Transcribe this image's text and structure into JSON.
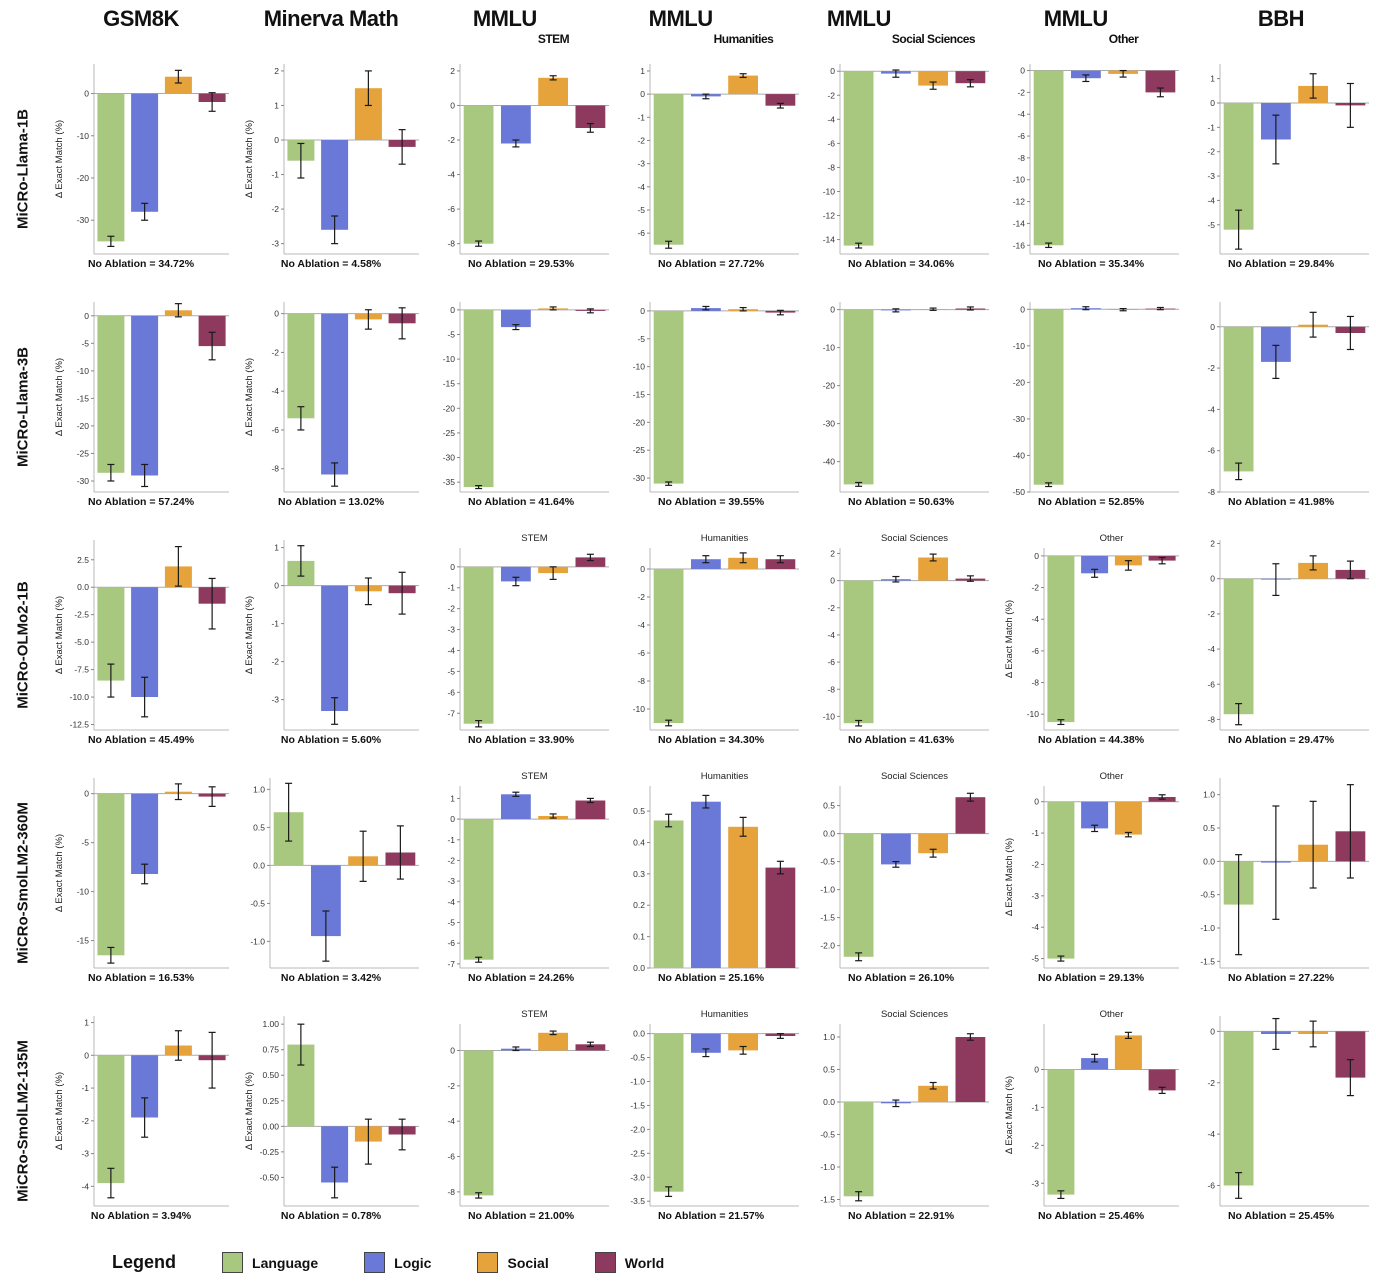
{
  "legend": {
    "title": "Legend",
    "items": [
      "Language",
      "Logic",
      "Social",
      "World"
    ]
  },
  "colors": {
    "Language": "#a9c87f",
    "Logic": "#6a79d7",
    "Social": "#e6a33c",
    "World": "#8e3a5f"
  },
  "categories": [
    "Language",
    "Logic",
    "Social",
    "World"
  ],
  "ylabel_text": "Δ Exact Match (%)",
  "columns": [
    {
      "title": "GSM8K",
      "subscript": ""
    },
    {
      "title": "Minerva Math",
      "subscript": ""
    },
    {
      "title": "MMLU",
      "subscript": "STEM"
    },
    {
      "title": "MMLU",
      "subscript": "Humanities"
    },
    {
      "title": "MMLU",
      "subscript": "Social Sciences"
    },
    {
      "title": "MMLU",
      "subscript": "Other"
    },
    {
      "title": "BBH",
      "subscript": ""
    }
  ],
  "rows": [
    "MiCRo-Llama-1B",
    "MiCRo-Llama-3B",
    "MiCRo-OLMo2-1B",
    "MiCRo-SmolLM2-360M",
    "MiCRo-SmolLM2-135M"
  ],
  "chart_data": [
    {
      "type": "bar",
      "row": "MiCRo-Llama-1B",
      "col": "GSM8K",
      "title": "",
      "values": [
        -35,
        -28,
        4,
        -2
      ],
      "errors": [
        1.2,
        2.0,
        1.5,
        2.2
      ],
      "ylim": [
        -38,
        7
      ],
      "yticks": [
        0,
        -10,
        -20,
        -30
      ],
      "dec": 0,
      "ylabel": true,
      "caption": "No Ablation = 34.72%"
    },
    {
      "type": "bar",
      "row": "MiCRo-Llama-1B",
      "col": "Minerva Math",
      "title": "",
      "values": [
        -0.6,
        -2.6,
        1.5,
        -0.2
      ],
      "errors": [
        0.5,
        0.4,
        0.5,
        0.5
      ],
      "ylim": [
        -3.3,
        2.2
      ],
      "yticks": [
        2,
        1,
        0,
        -1,
        -2,
        -3
      ],
      "dec": 0,
      "ylabel": true,
      "caption": "No Ablation = 4.58%"
    },
    {
      "type": "bar",
      "row": "MiCRo-Llama-1B",
      "col": "MMLU STEM",
      "title": "",
      "values": [
        -8,
        -2.2,
        1.6,
        -1.3
      ],
      "errors": [
        0.15,
        0.2,
        0.12,
        0.25
      ],
      "ylim": [
        -8.6,
        2.4
      ],
      "yticks": [
        2,
        0,
        -2,
        -4,
        -6,
        -8
      ],
      "dec": 0,
      "ylabel": false,
      "caption": "No Ablation = 29.53%"
    },
    {
      "type": "bar",
      "row": "MiCRo-Llama-1B",
      "col": "MMLU Humanities",
      "title": "",
      "values": [
        -6.5,
        -0.1,
        0.8,
        -0.5
      ],
      "errors": [
        0.15,
        0.1,
        0.08,
        0.1
      ],
      "ylim": [
        -6.9,
        1.3
      ],
      "yticks": [
        1,
        0,
        -1,
        -2,
        -3,
        -4,
        -5,
        -6
      ],
      "dec": 0,
      "ylabel": false,
      "caption": "No Ablation = 27.72%"
    },
    {
      "type": "bar",
      "row": "MiCRo-Llama-1B",
      "col": "MMLU Social Sciences",
      "title": "",
      "values": [
        -14.5,
        -0.2,
        -1.2,
        -1.0
      ],
      "errors": [
        0.2,
        0.3,
        0.3,
        0.3
      ],
      "ylim": [
        -15.2,
        0.6
      ],
      "yticks": [
        0,
        -2,
        -4,
        -6,
        -8,
        -10,
        -12,
        -14
      ],
      "dec": 0,
      "ylabel": false,
      "caption": "No Ablation = 34.06%"
    },
    {
      "type": "bar",
      "row": "MiCRo-Llama-1B",
      "col": "MMLU Other",
      "title": "",
      "values": [
        -16,
        -0.7,
        -0.3,
        -2.0
      ],
      "errors": [
        0.2,
        0.3,
        0.3,
        0.4
      ],
      "ylim": [
        -16.8,
        0.6
      ],
      "yticks": [
        0,
        -2,
        -4,
        -6,
        -8,
        -10,
        -12,
        -14,
        -16
      ],
      "dec": 0,
      "ylabel": false,
      "caption": "No Ablation = 35.34%"
    },
    {
      "type": "bar",
      "row": "MiCRo-Llama-1B",
      "col": "BBH",
      "title": "",
      "values": [
        -5.2,
        -1.5,
        0.7,
        -0.1
      ],
      "errors": [
        0.8,
        1.0,
        0.5,
        0.9
      ],
      "ylim": [
        -6.2,
        1.6
      ],
      "yticks": [
        1,
        0,
        -1,
        -2,
        -3,
        -4,
        -5
      ],
      "dec": 0,
      "ylabel": false,
      "caption": "No Ablation = 29.84%"
    },
    {
      "type": "bar",
      "row": "MiCRo-Llama-3B",
      "col": "GSM8K",
      "title": "",
      "values": [
        -28.5,
        -29,
        1,
        -5.5
      ],
      "errors": [
        1.5,
        2.0,
        1.2,
        2.5
      ],
      "ylim": [
        -32,
        2.5
      ],
      "yticks": [
        0,
        -5,
        -10,
        -15,
        -20,
        -25,
        -30
      ],
      "dec": 0,
      "ylabel": true,
      "caption": "No Ablation = 57.24%"
    },
    {
      "type": "bar",
      "row": "MiCRo-Llama-3B",
      "col": "Minerva Math",
      "title": "",
      "values": [
        -5.4,
        -8.3,
        -0.3,
        -0.5
      ],
      "errors": [
        0.6,
        0.6,
        0.5,
        0.8
      ],
      "ylim": [
        -9.2,
        0.6
      ],
      "yticks": [
        0,
        -2,
        -4,
        -6,
        -8
      ],
      "dec": 0,
      "ylabel": true,
      "caption": "No Ablation = 13.02%"
    },
    {
      "type": "bar",
      "row": "MiCRo-Llama-3B",
      "col": "MMLU STEM",
      "title": "",
      "values": [
        -36,
        -3.5,
        0.3,
        -0.2
      ],
      "errors": [
        0.3,
        0.5,
        0.3,
        0.4
      ],
      "ylim": [
        -37,
        1.6
      ],
      "yticks": [
        0,
        -5,
        -10,
        -15,
        -20,
        -25,
        -30,
        -35
      ],
      "dec": 0,
      "ylabel": false,
      "caption": "No Ablation = 41.64%"
    },
    {
      "type": "bar",
      "row": "MiCRo-Llama-3B",
      "col": "MMLU Humanities",
      "title": "",
      "values": [
        -31,
        0.5,
        0.3,
        -0.3
      ],
      "errors": [
        0.3,
        0.3,
        0.3,
        0.4
      ],
      "ylim": [
        -32.5,
        1.6
      ],
      "yticks": [
        0,
        -5,
        -10,
        -15,
        -20,
        -25,
        -30
      ],
      "dec": 0,
      "ylabel": false,
      "caption": "No Ablation = 39.55%"
    },
    {
      "type": "bar",
      "row": "MiCRo-Llama-3B",
      "col": "MMLU Social Sciences",
      "title": "",
      "values": [
        -46,
        -0.2,
        0.1,
        0.3
      ],
      "errors": [
        0.5,
        0.4,
        0.3,
        0.4
      ],
      "ylim": [
        -48,
        2
      ],
      "yticks": [
        0,
        -10,
        -20,
        -30,
        -40
      ],
      "dec": 0,
      "ylabel": false,
      "caption": "No Ablation = 50.63%"
    },
    {
      "type": "bar",
      "row": "MiCRo-Llama-3B",
      "col": "MMLU Other",
      "title": "",
      "values": [
        -48,
        0.3,
        -0.1,
        0.2
      ],
      "errors": [
        0.5,
        0.4,
        0.3,
        0.3
      ],
      "ylim": [
        -50,
        2
      ],
      "yticks": [
        0,
        -10,
        -20,
        -30,
        -40,
        -50
      ],
      "dec": 0,
      "ylabel": false,
      "caption": "No Ablation = 52.85%"
    },
    {
      "type": "bar",
      "row": "MiCRo-Llama-3B",
      "col": "BBH",
      "title": "",
      "values": [
        -7,
        -1.7,
        0.1,
        -0.3
      ],
      "errors": [
        0.4,
        0.8,
        0.6,
        0.8
      ],
      "ylim": [
        -8,
        1.2
      ],
      "yticks": [
        0,
        -2,
        -4,
        -6,
        -8
      ],
      "dec": 0,
      "ylabel": false,
      "caption": "No Ablation = 41.98%"
    },
    {
      "type": "bar",
      "row": "MiCRo-OLMo2-1B",
      "col": "GSM8K",
      "title": "",
      "values": [
        -8.5,
        -10,
        1.9,
        -1.5
      ],
      "errors": [
        1.5,
        1.8,
        1.8,
        2.3
      ],
      "ylim": [
        -13,
        4.3
      ],
      "yticks": [
        2.5,
        0,
        -2.5,
        -5,
        -7.5,
        -10,
        -12.5
      ],
      "dec": 1,
      "ylabel": true,
      "caption": "No Ablation = 45.49%"
    },
    {
      "type": "bar",
      "row": "MiCRo-OLMo2-1B",
      "col": "Minerva Math",
      "title": "",
      "values": [
        0.65,
        -3.3,
        -0.15,
        -0.2
      ],
      "errors": [
        0.4,
        0.35,
        0.35,
        0.55
      ],
      "ylim": [
        -3.8,
        1.2
      ],
      "yticks": [
        1,
        0,
        -1,
        -2,
        -3
      ],
      "dec": 0,
      "ylabel": true,
      "caption": "No Ablation = 5.60%"
    },
    {
      "type": "bar",
      "row": "MiCRo-OLMo2-1B",
      "col": "MMLU STEM",
      "title": "STEM",
      "values": [
        -7.5,
        -0.7,
        -0.3,
        0.45
      ],
      "errors": [
        0.15,
        0.2,
        0.3,
        0.15
      ],
      "ylim": [
        -7.8,
        0.9
      ],
      "yticks": [
        0,
        -1,
        -2,
        -3,
        -4,
        -5,
        -6,
        -7
      ],
      "dec": 0,
      "ylabel": false,
      "caption": "No Ablation = 33.90%"
    },
    {
      "type": "bar",
      "row": "MiCRo-OLMo2-1B",
      "col": "MMLU Humanities",
      "title": "Humanities",
      "values": [
        -11,
        0.7,
        0.8,
        0.7
      ],
      "errors": [
        0.2,
        0.25,
        0.35,
        0.25
      ],
      "ylim": [
        -11.5,
        1.5
      ],
      "yticks": [
        0,
        -2,
        -4,
        -6,
        -8,
        -10
      ],
      "dec": 0,
      "ylabel": false,
      "caption": "No Ablation = 34.30%"
    },
    {
      "type": "bar",
      "row": "MiCRo-OLMo2-1B",
      "col": "MMLU Social Sciences",
      "title": "Social Sciences",
      "values": [
        -10.5,
        0.1,
        1.7,
        0.15
      ],
      "errors": [
        0.2,
        0.2,
        0.25,
        0.2
      ],
      "ylim": [
        -11,
        2.4
      ],
      "yticks": [
        2,
        0,
        -2,
        -4,
        -6,
        -8,
        -10
      ],
      "dec": 0,
      "ylabel": false,
      "caption": "No Ablation = 41.63%"
    },
    {
      "type": "bar",
      "row": "MiCRo-OLMo2-1B",
      "col": "MMLU Other",
      "title": "Other",
      "values": [
        -10.5,
        -1.1,
        -0.6,
        -0.3
      ],
      "errors": [
        0.15,
        0.25,
        0.3,
        0.2
      ],
      "ylim": [
        -11,
        0.5
      ],
      "yticks": [
        0,
        -2,
        -4,
        -6,
        -8,
        -10
      ],
      "dec": 0,
      "ylabel": true,
      "caption": "No Ablation = 44.38%"
    },
    {
      "type": "bar",
      "row": "MiCRo-OLMo2-1B",
      "col": "BBH",
      "title": "",
      "values": [
        -7.7,
        -0.05,
        0.9,
        0.5
      ],
      "errors": [
        0.6,
        0.9,
        0.4,
        0.5
      ],
      "ylim": [
        -8.6,
        2.2
      ],
      "yticks": [
        2,
        0,
        -2,
        -4,
        -6,
        -8
      ],
      "dec": 0,
      "ylabel": false,
      "caption": "No Ablation = 29.47%"
    },
    {
      "type": "bar",
      "row": "MiCRo-SmolLM2-360M",
      "col": "GSM8K",
      "title": "",
      "values": [
        -16.5,
        -8.2,
        0.2,
        -0.3
      ],
      "errors": [
        0.8,
        1.0,
        0.8,
        1.0
      ],
      "ylim": [
        -17.8,
        1.6
      ],
      "yticks": [
        0,
        -5,
        -10,
        -15
      ],
      "dec": 0,
      "ylabel": true,
      "caption": "No Ablation = 16.53%"
    },
    {
      "type": "bar",
      "row": "MiCRo-SmolLM2-360M",
      "col": "Minerva Math",
      "title": "",
      "values": [
        0.7,
        -0.93,
        0.12,
        0.17
      ],
      "errors": [
        0.38,
        0.33,
        0.33,
        0.35
      ],
      "ylim": [
        -1.35,
        1.15
      ],
      "yticks": [
        1.0,
        0.5,
        0.0,
        -0.5,
        -1.0
      ],
      "dec": 1,
      "ylabel": false,
      "caption": "No Ablation = 3.42%"
    },
    {
      "type": "bar",
      "row": "MiCRo-SmolLM2-360M",
      "col": "MMLU STEM",
      "title": "STEM",
      "values": [
        -6.8,
        1.2,
        0.15,
        0.9
      ],
      "errors": [
        0.12,
        0.1,
        0.1,
        0.1
      ],
      "ylim": [
        -7.2,
        1.6
      ],
      "yticks": [
        1,
        0,
        -1,
        -2,
        -3,
        -4,
        -5,
        -6,
        -7
      ],
      "dec": 0,
      "ylabel": false,
      "caption": "No Ablation = 24.26%"
    },
    {
      "type": "bar",
      "row": "MiCRo-SmolLM2-360M",
      "col": "MMLU Humanities",
      "title": "Humanities",
      "values": [
        0.47,
        0.53,
        0.45,
        0.32
      ],
      "errors": [
        0.02,
        0.02,
        0.03,
        0.02
      ],
      "ylim": [
        0,
        0.58
      ],
      "yticks": [
        0.0,
        0.1,
        0.2,
        0.3,
        0.4,
        0.5
      ],
      "dec": 1,
      "ylabel": false,
      "caption": "No Ablation = 25.16%"
    },
    {
      "type": "bar",
      "row": "MiCRo-SmolLM2-360M",
      "col": "MMLU Social Sciences",
      "title": "Social Sciences",
      "values": [
        -2.2,
        -0.55,
        -0.35,
        0.65
      ],
      "errors": [
        0.07,
        0.05,
        0.07,
        0.07
      ],
      "ylim": [
        -2.4,
        0.85
      ],
      "yticks": [
        0.5,
        0.0,
        -0.5,
        -1.0,
        -1.5,
        -2.0
      ],
      "dec": 1,
      "ylabel": false,
      "caption": "No Ablation = 26.10%"
    },
    {
      "type": "bar",
      "row": "MiCRo-SmolLM2-360M",
      "col": "MMLU Other",
      "title": "Other",
      "values": [
        -5.0,
        -0.85,
        -1.05,
        0.15
      ],
      "errors": [
        0.08,
        0.1,
        0.07,
        0.07
      ],
      "ylim": [
        -5.3,
        0.5
      ],
      "yticks": [
        0,
        -1,
        -2,
        -3,
        -4,
        -5
      ],
      "dec": 0,
      "ylabel": true,
      "caption": "No Ablation = 29.13%"
    },
    {
      "type": "bar",
      "row": "MiCRo-SmolLM2-360M",
      "col": "BBH",
      "title": "",
      "values": [
        -0.65,
        -0.02,
        0.25,
        0.45
      ],
      "errors": [
        0.75,
        0.85,
        0.65,
        0.7
      ],
      "ylim": [
        -1.6,
        1.25
      ],
      "yticks": [
        1.0,
        0.5,
        0.0,
        -0.5,
        -1.0,
        -1.5
      ],
      "dec": 1,
      "ylabel": false,
      "caption": "No Ablation = 27.22%"
    },
    {
      "type": "bar",
      "row": "MiCRo-SmolLM2-135M",
      "col": "GSM8K",
      "title": "",
      "values": [
        -3.9,
        -1.9,
        0.3,
        -0.15
      ],
      "errors": [
        0.45,
        0.6,
        0.45,
        0.85
      ],
      "ylim": [
        -4.6,
        1.2
      ],
      "yticks": [
        1,
        0,
        -1,
        -2,
        -3,
        -4
      ],
      "dec": 0,
      "ylabel": true,
      "caption": "No Ablation = 3.94%"
    },
    {
      "type": "bar",
      "row": "MiCRo-SmolLM2-135M",
      "col": "Minerva Math",
      "title": "",
      "values": [
        0.8,
        -0.55,
        -0.15,
        -0.08
      ],
      "errors": [
        0.2,
        0.15,
        0.22,
        0.15
      ],
      "ylim": [
        -0.78,
        1.08
      ],
      "yticks": [
        1.0,
        0.75,
        0.5,
        0.25,
        0.0,
        -0.25,
        -0.5
      ],
      "dec": 2,
      "ylabel": true,
      "caption": "No Ablation = 0.78%"
    },
    {
      "type": "bar",
      "row": "MiCRo-SmolLM2-135M",
      "col": "MMLU STEM",
      "title": "STEM",
      "values": [
        -8.2,
        0.1,
        1.0,
        0.35
      ],
      "errors": [
        0.15,
        0.1,
        0.1,
        0.12
      ],
      "ylim": [
        -8.8,
        1.5
      ],
      "yticks": [
        0,
        -2,
        -4,
        -6,
        -8
      ],
      "dec": 0,
      "ylabel": false,
      "caption": "No Ablation = 21.00%"
    },
    {
      "type": "bar",
      "row": "MiCRo-SmolLM2-135M",
      "col": "MMLU Humanities",
      "title": "Humanities",
      "values": [
        -3.3,
        -0.4,
        -0.35,
        -0.05
      ],
      "errors": [
        0.1,
        0.08,
        0.08,
        0.05
      ],
      "ylim": [
        -3.6,
        0.2
      ],
      "yticks": [
        0.0,
        -0.5,
        -1.0,
        -1.5,
        -2.0,
        -2.5,
        -3.0,
        -3.5
      ],
      "dec": 1,
      "ylabel": false,
      "caption": "No Ablation = 21.57%"
    },
    {
      "type": "bar",
      "row": "MiCRo-SmolLM2-135M",
      "col": "MMLU Social Sciences",
      "title": "Social Sciences",
      "values": [
        -1.45,
        -0.02,
        0.25,
        1.0
      ],
      "errors": [
        0.07,
        0.05,
        0.05,
        0.05
      ],
      "ylim": [
        -1.6,
        1.2
      ],
      "yticks": [
        1.0,
        0.5,
        0.0,
        -0.5,
        -1.0,
        -1.5
      ],
      "dec": 1,
      "ylabel": false,
      "caption": "No Ablation = 22.91%"
    },
    {
      "type": "bar",
      "row": "MiCRo-SmolLM2-135M",
      "col": "MMLU Other",
      "title": "Other",
      "values": [
        -3.3,
        0.3,
        0.9,
        -0.55
      ],
      "errors": [
        0.1,
        0.1,
        0.08,
        0.08
      ],
      "ylim": [
        -3.6,
        1.2
      ],
      "yticks": [
        0,
        -1,
        -2,
        -3
      ],
      "dec": 0,
      "ylabel": true,
      "caption": "No Ablation = 25.46%"
    },
    {
      "type": "bar",
      "row": "MiCRo-SmolLM2-135M",
      "col": "BBH",
      "title": "",
      "values": [
        -6.0,
        -0.1,
        -0.1,
        -1.8
      ],
      "errors": [
        0.5,
        0.6,
        0.5,
        0.7
      ],
      "ylim": [
        -6.8,
        0.6
      ],
      "yticks": [
        0,
        -2,
        -4,
        -6
      ],
      "dec": 0,
      "ylabel": false,
      "caption": "No Ablation = 25.45%"
    }
  ]
}
